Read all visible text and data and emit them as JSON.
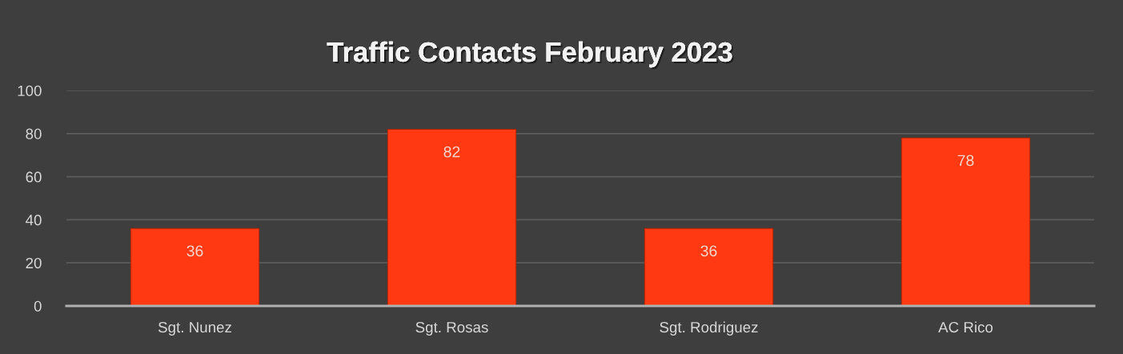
{
  "chart_data": {
    "type": "bar",
    "title": "Traffic Contacts February 2023",
    "categories": [
      "Sgt. Nunez",
      "Sgt. Rosas",
      "Sgt. Rodriguez",
      "AC Rico"
    ],
    "values": [
      36,
      82,
      36,
      78
    ],
    "color": "#ff3a12",
    "ylim": [
      0,
      100
    ],
    "yticks": [
      0,
      20,
      40,
      60,
      80,
      100
    ],
    "grid": "y",
    "data_labels": true
  }
}
